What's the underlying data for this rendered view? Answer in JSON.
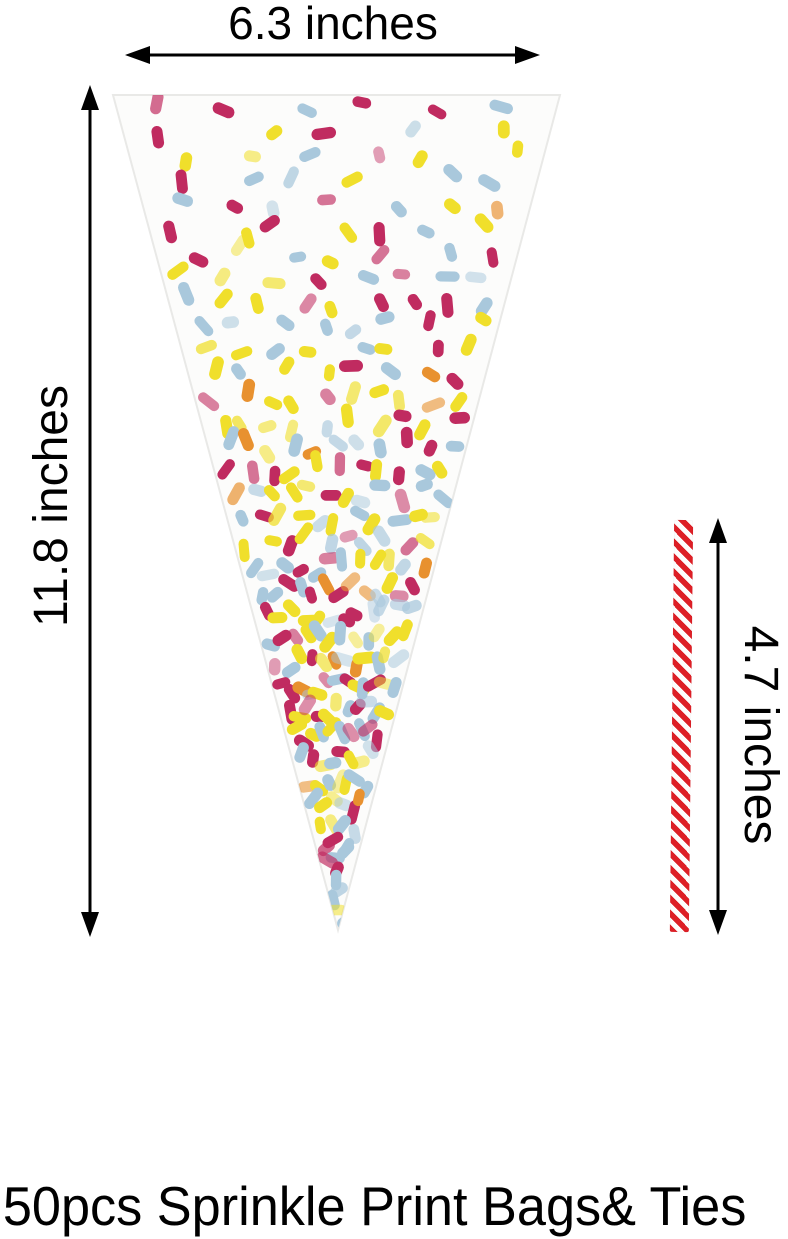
{
  "product": {
    "caption": "50pcs Sprinkle Print Bags& Ties",
    "item": "cone-shaped clear cellophane bag with sprinkle print, with red striped twist tie"
  },
  "dimensions": {
    "bag_width": "6.3 inches",
    "bag_height": "11.8 inches",
    "tie_length": "4.7 inches"
  },
  "bag": {
    "fill_color": "#fcfcfb",
    "sprinkle_palette": [
      {
        "color": "#f0df2b",
        "weight": 0.36
      },
      {
        "color": "#a9c8dc",
        "weight": 0.3
      },
      {
        "color": "#c02b60",
        "weight": 0.3
      },
      {
        "color": "#e8912f",
        "weight": 0.04
      }
    ]
  },
  "tie": {
    "stripe_color": "#dd1f26",
    "base_color": "#fdfdfd"
  },
  "icons": {
    "width_arrow": "horizontal-double-headed-arrow",
    "height_arrow": "vertical-double-headed-arrow",
    "tie_arrow": "vertical-double-headed-arrow"
  },
  "colors": {
    "text": "#000000",
    "arrow": "#000000",
    "background": "#ffffff"
  }
}
